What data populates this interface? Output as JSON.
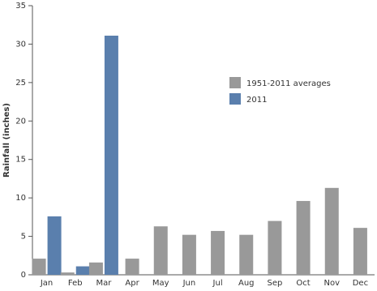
{
  "chart_data": {
    "type": "bar",
    "y_label": "Rainfall (inches)",
    "categories": [
      "Jan",
      "Feb",
      "Mar",
      "Apr",
      "May",
      "Jun",
      "Jul",
      "Aug",
      "Sep",
      "Oct",
      "Nov",
      "Dec"
    ],
    "series": [
      {
        "name": "1951-2011 averages",
        "color": "#999999",
        "values": [
          2.1,
          0.3,
          1.6,
          2.1,
          6.3,
          5.2,
          5.7,
          5.2,
          7.0,
          9.6,
          11.3,
          6.1
        ]
      },
      {
        "name": "2011",
        "color": "#5a7fad",
        "values": [
          7.6,
          1.1,
          31.1,
          null,
          null,
          null,
          null,
          null,
          null,
          null,
          null,
          null
        ]
      }
    ],
    "ylim": [
      0,
      35
    ],
    "yticks": [
      0,
      5,
      10,
      15,
      20,
      25,
      30,
      35
    ],
    "grid": false
  }
}
